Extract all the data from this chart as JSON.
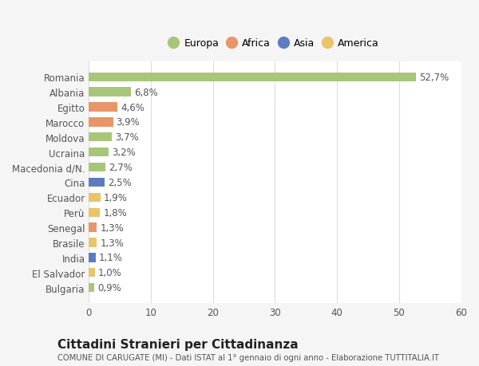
{
  "countries": [
    "Romania",
    "Albania",
    "Egitto",
    "Marocco",
    "Moldova",
    "Ucraina",
    "Macedonia d/N.",
    "Cina",
    "Ecuador",
    "Perù",
    "Senegal",
    "Brasile",
    "India",
    "El Salvador",
    "Bulgaria"
  ],
  "values": [
    52.7,
    6.8,
    4.6,
    3.9,
    3.7,
    3.2,
    2.7,
    2.5,
    1.9,
    1.8,
    1.3,
    1.3,
    1.1,
    1.0,
    0.9
  ],
  "labels": [
    "52,7%",
    "6,8%",
    "4,6%",
    "3,9%",
    "3,7%",
    "3,2%",
    "2,7%",
    "2,5%",
    "1,9%",
    "1,8%",
    "1,3%",
    "1,3%",
    "1,1%",
    "1,0%",
    "0,9%"
  ],
  "colors": [
    "#a8c57a",
    "#a8c57a",
    "#e8956a",
    "#e8956a",
    "#a8c57a",
    "#a8c57a",
    "#a8c57a",
    "#5b7dbf",
    "#e8c46a",
    "#e8c46a",
    "#e8956a",
    "#e8c46a",
    "#5b7dbf",
    "#e8c46a",
    "#a8c57a"
  ],
  "legend_labels": [
    "Europa",
    "Africa",
    "Asia",
    "America"
  ],
  "legend_colors": [
    "#a8c57a",
    "#e8956a",
    "#5b7dbf",
    "#e8c46a"
  ],
  "title": "Cittadini Stranieri per Cittadinanza",
  "subtitle": "COMUNE DI CARUGATE (MI) - Dati ISTAT al 1° gennaio di ogni anno - Elaborazione TUTTITALIA.IT",
  "xlim": [
    0,
    60
  ],
  "xticks": [
    0,
    10,
    20,
    30,
    40,
    50,
    60
  ],
  "bg_color": "#f5f5f5",
  "bar_bg": "#ffffff",
  "grid_color": "#dddddd",
  "text_color": "#555555",
  "title_color": "#222222",
  "subtitle_color": "#555555"
}
